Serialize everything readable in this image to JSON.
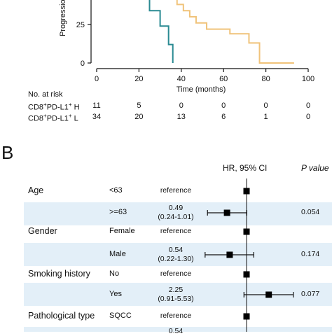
{
  "panel_a": {
    "chart_data": {
      "type": "line",
      "ylabel_fragment": "Progression",
      "xlabel": "Time (months)",
      "xlim": [
        0,
        100
      ],
      "x_ticks": [
        "0",
        "20",
        "40",
        "60",
        "80",
        "100"
      ],
      "y_ticks_visible": [
        "25",
        "0"
      ],
      "series": [
        {
          "color": "#2a8a92",
          "x": [
            0,
            25,
            25,
            30,
            30,
            34,
            34,
            36,
            36
          ],
          "y": [
            45,
            45,
            34,
            34,
            24,
            24,
            12,
            12,
            0
          ]
        },
        {
          "color": "#f0c37a",
          "x": [
            0,
            35,
            35,
            38,
            38,
            41,
            41,
            44,
            44,
            47,
            47,
            52,
            52,
            63,
            63,
            72,
            72,
            77,
            77,
            93,
            93
          ],
          "y": [
            45,
            45,
            42,
            42,
            38,
            38,
            34,
            34,
            30,
            30,
            26,
            26,
            22,
            22,
            19,
            19,
            13,
            13,
            0,
            0,
            -0.5
          ]
        }
      ]
    },
    "risk_table": {
      "title": "No. at risk",
      "rows": [
        {
          "label_pre": "CD8",
          "sup1": "+",
          "label_mid": "PD-L1",
          "sup2": "+",
          "label_post": " H",
          "values": [
            "11",
            "5",
            "0",
            "0",
            "0",
            "0"
          ]
        },
        {
          "label_pre": "CD8",
          "sup1": "+",
          "label_mid": "PD-L1",
          "sup2": "+",
          "label_post": " L",
          "values": [
            "34",
            "20",
            "13",
            "6",
            "1",
            "0"
          ]
        }
      ]
    }
  },
  "panel_b": {
    "letter": "B",
    "header_hr": "HR, 95% CI",
    "header_p": "P value",
    "chart_data": {
      "type": "forest",
      "reference_line": 1,
      "rows": [
        {
          "variable": "Age",
          "level": "<63",
          "hr_text": "reference",
          "ci_text": "",
          "p": "",
          "shaded": false,
          "hr": 1,
          "lo": null,
          "hi": null
        },
        {
          "variable": "",
          "level": ">=63",
          "hr_text": "0.49",
          "ci_text": "(0.24-1.01)",
          "p": "0.054",
          "shaded": true,
          "hr": 0.49,
          "lo": 0.24,
          "hi": 1.01
        },
        {
          "variable": "Gender",
          "level": "Female",
          "hr_text": "reference",
          "ci_text": "",
          "p": "",
          "shaded": false,
          "hr": 1,
          "lo": null,
          "hi": null
        },
        {
          "variable": "",
          "level": "Male",
          "hr_text": "0.54",
          "ci_text": "(0.22-1.30)",
          "p": "0.174",
          "shaded": true,
          "hr": 0.54,
          "lo": 0.22,
          "hi": 1.3
        },
        {
          "variable": "Smoking history",
          "level": "No",
          "hr_text": "reference",
          "ci_text": "",
          "p": "",
          "shaded": false,
          "hr": 1,
          "lo": null,
          "hi": null
        },
        {
          "variable": "",
          "level": "Yes",
          "hr_text": "2.25",
          "ci_text": "(0.91-5.53)",
          "p": "0.077",
          "shaded": true,
          "hr": 2.25,
          "lo": 0.91,
          "hi": 5.53
        },
        {
          "variable": "Pathological type",
          "level": "SQCC",
          "hr_text": "reference",
          "ci_text": "",
          "p": "",
          "shaded": false,
          "hr": 1,
          "lo": null,
          "hi": null
        },
        {
          "variable": "",
          "level": "",
          "hr_text": "0.54",
          "ci_text": "",
          "p": "",
          "shaded": true,
          "hr": null,
          "lo": null,
          "hi": null
        }
      ]
    }
  }
}
